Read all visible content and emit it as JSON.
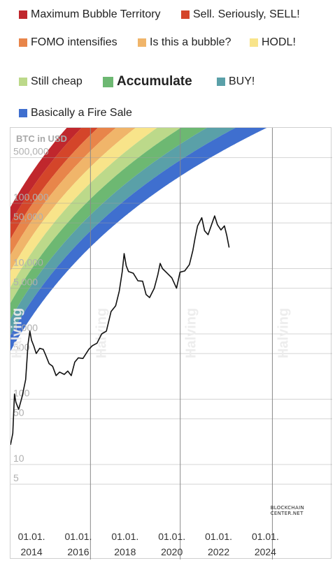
{
  "legend": [
    {
      "label": "Maximum Bubble Territory",
      "color": "#c0272d"
    },
    {
      "label": "Sell. Seriously, SELL!",
      "color": "#d4452a"
    },
    {
      "label": "FOMO intensifies",
      "color": "#e8854a"
    },
    {
      "label": "Is this a bubble?",
      "color": "#f0b56a"
    },
    {
      "label": "HODL!",
      "color": "#f8e48a"
    },
    {
      "label": "Still cheap",
      "color": "#bcd98a"
    },
    {
      "label": "Accumulate",
      "color": "#6db872"
    },
    {
      "label": "BUY!",
      "color": "#5aa0a8"
    },
    {
      "label": "Basically a Fire Sale",
      "color": "#3f6fcf"
    }
  ],
  "watermark": {
    "line1": "BLOCKCHAIN",
    "line2": "CENTER.NET"
  },
  "chart_data": {
    "type": "area",
    "ylabel": "BTC in USD",
    "yscale": "log",
    "y_ticks": [
      "500,000",
      "100,000",
      "50,000",
      "10,000",
      "5,000",
      "1,000",
      "500",
      "100",
      "50",
      "10",
      "5"
    ],
    "x_ticks": [
      {
        "line1": "01.01.",
        "line2": "2014"
      },
      {
        "line1": "01.01.",
        "line2": "2016"
      },
      {
        "line1": "01.01.",
        "line2": "2018"
      },
      {
        "line1": "01.01.",
        "line2": "2020"
      },
      {
        "line1": "01.01.",
        "line2": "2022"
      },
      {
        "line1": "01.01.",
        "line2": "2024"
      }
    ],
    "x_tick_years": [
      2014,
      2016,
      2018,
      2020,
      2022,
      2024
    ],
    "x_range": [
      2013.1,
      2026.5
    ],
    "halvings": [
      {
        "label": "Halving",
        "date": 2012.9
      },
      {
        "label": "Halving",
        "date": 2016.52
      },
      {
        "label": "Halving",
        "date": 2020.36
      },
      {
        "label": "Halving",
        "date": 2024.3
      }
    ],
    "price_series": {
      "name": "BTC price",
      "points": [
        [
          2013.1,
          20
        ],
        [
          2013.2,
          30
        ],
        [
          2013.27,
          120
        ],
        [
          2013.33,
          90
        ],
        [
          2013.45,
          70
        ],
        [
          2013.6,
          110
        ],
        [
          2013.75,
          200
        ],
        [
          2013.85,
          700
        ],
        [
          2013.93,
          1100
        ],
        [
          2014.0,
          800
        ],
        [
          2014.1,
          650
        ],
        [
          2014.2,
          500
        ],
        [
          2014.35,
          600
        ],
        [
          2014.5,
          580
        ],
        [
          2014.6,
          480
        ],
        [
          2014.75,
          350
        ],
        [
          2014.9,
          320
        ],
        [
          2015.05,
          230
        ],
        [
          2015.2,
          260
        ],
        [
          2015.4,
          240
        ],
        [
          2015.55,
          270
        ],
        [
          2015.7,
          230
        ],
        [
          2015.85,
          370
        ],
        [
          2016.0,
          430
        ],
        [
          2016.2,
          420
        ],
        [
          2016.45,
          580
        ],
        [
          2016.6,
          660
        ],
        [
          2016.8,
          720
        ],
        [
          2017.0,
          1000
        ],
        [
          2017.2,
          1100
        ],
        [
          2017.4,
          2200
        ],
        [
          2017.6,
          2700
        ],
        [
          2017.75,
          4500
        ],
        [
          2017.88,
          9000
        ],
        [
          2017.96,
          17000
        ],
        [
          2018.05,
          11000
        ],
        [
          2018.15,
          9000
        ],
        [
          2018.35,
          8500
        ],
        [
          2018.55,
          6500
        ],
        [
          2018.75,
          6400
        ],
        [
          2018.9,
          4000
        ],
        [
          2019.05,
          3600
        ],
        [
          2019.25,
          5000
        ],
        [
          2019.4,
          8000
        ],
        [
          2019.5,
          12000
        ],
        [
          2019.6,
          10000
        ],
        [
          2019.8,
          8500
        ],
        [
          2020.0,
          7200
        ],
        [
          2020.2,
          5000
        ],
        [
          2020.35,
          8800
        ],
        [
          2020.55,
          9200
        ],
        [
          2020.75,
          11500
        ],
        [
          2020.9,
          19000
        ],
        [
          2021.0,
          30000
        ],
        [
          2021.1,
          45000
        ],
        [
          2021.28,
          60000
        ],
        [
          2021.4,
          38000
        ],
        [
          2021.55,
          33000
        ],
        [
          2021.7,
          47000
        ],
        [
          2021.83,
          64000
        ],
        [
          2021.95,
          47000
        ],
        [
          2022.1,
          39000
        ],
        [
          2022.25,
          45000
        ],
        [
          2022.35,
          32000
        ],
        [
          2022.45,
          21000
        ]
      ]
    }
  }
}
